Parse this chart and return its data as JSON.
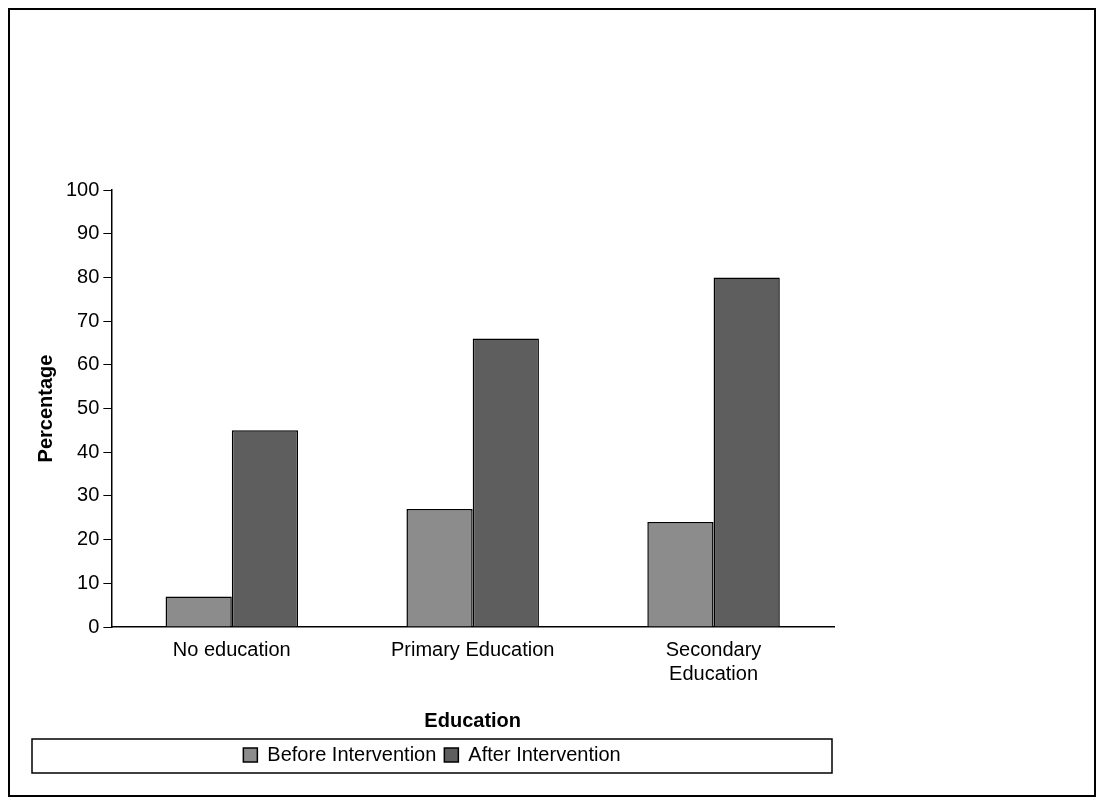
{
  "chart_data": {
    "type": "bar",
    "xlabel": "Education",
    "ylabel": "Percentage",
    "categories": [
      "No education",
      "Primary Education",
      "Secondary Education"
    ],
    "series": [
      {
        "name": "Before Intervention",
        "color": "#8c8c8c",
        "values": [
          7,
          27,
          24
        ]
      },
      {
        "name": "After Intervention",
        "color": "#5e5e5e",
        "values": [
          45,
          66,
          80
        ]
      }
    ],
    "ylim": [
      0,
      100
    ],
    "yticks": [
      0,
      10,
      20,
      30,
      40,
      50,
      60,
      70,
      80,
      90,
      100
    ],
    "grid": false,
    "legend": "bottom"
  }
}
